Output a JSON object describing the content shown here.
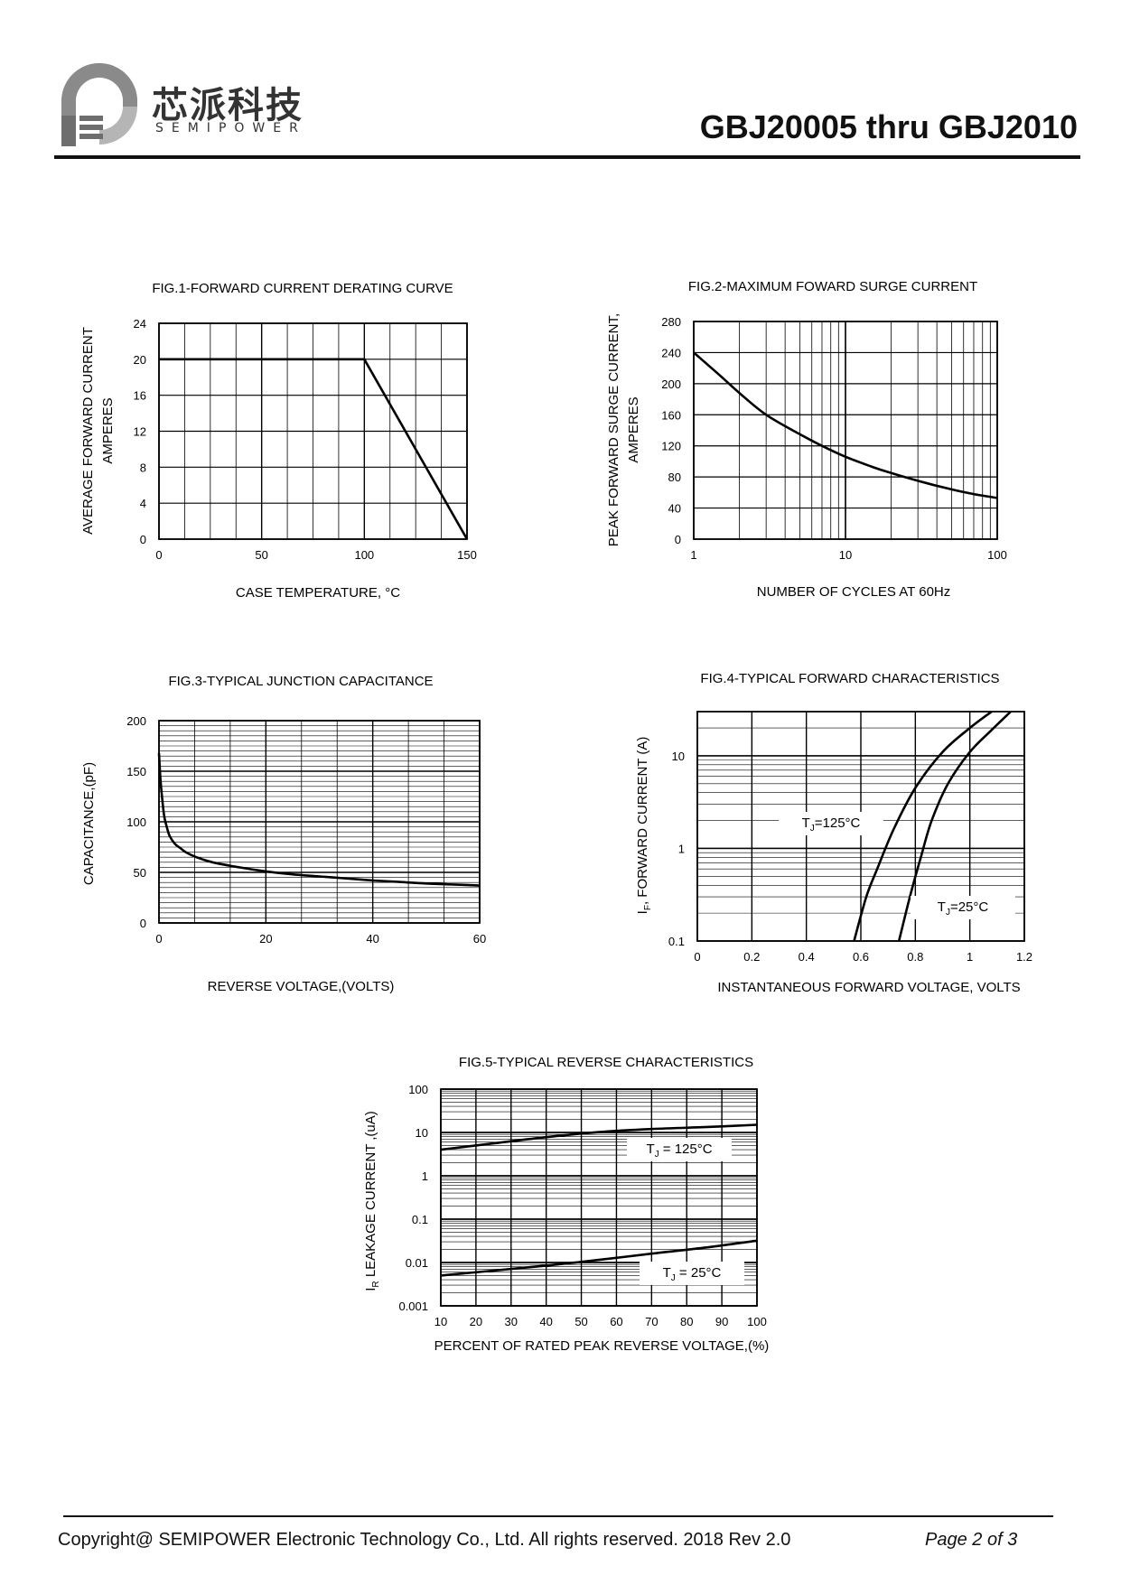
{
  "header": {
    "brand_cn": "芯派科技",
    "brand_en": "SEMIPOWER",
    "part_title": "GBJ20005 thru GBJ2010",
    "logo_icon": "semipower-logo-icon"
  },
  "footer": {
    "copyright": "Copyright@ SEMIPOWER Electronic Technology Co., Ltd.  All rights reserved.  2018  Rev  2.0",
    "page_label": "Page  2  of  3"
  },
  "chart_data": [
    {
      "id": "fig1",
      "type": "line",
      "title": "FIG.1-FORWARD CURRENT DERATING CURVE",
      "xlabel": "CASE TEMPERATURE, °C",
      "ylabel": [
        "AVERAGE FORWARD CURRENT",
        "AMPERES"
      ],
      "xlim": [
        0,
        150
      ],
      "ylim": [
        0,
        24
      ],
      "xticks": [
        0,
        50,
        100,
        150
      ],
      "yticks": [
        0,
        4,
        8,
        12,
        16,
        20,
        24
      ],
      "xscale": "linear",
      "yscale": "linear",
      "grid": true,
      "series": [
        {
          "x": [
            0,
            100,
            150
          ],
          "y": [
            20,
            20,
            0
          ]
        }
      ]
    },
    {
      "id": "fig2",
      "type": "line",
      "title": "FIG.2-MAXIMUM FOWARD  SURGE CURRENT",
      "xlabel": "NUMBER OF CYCLES AT 60Hz",
      "ylabel": [
        "PEAK FORWARD SURGE CURRENT,",
        "AMPERES"
      ],
      "xlim": [
        1,
        100
      ],
      "ylim": [
        0,
        280
      ],
      "xticks": [
        1,
        10,
        100
      ],
      "yticks": [
        0,
        40,
        80,
        120,
        160,
        200,
        240,
        280
      ],
      "xscale": "log",
      "yscale": "linear",
      "grid": true,
      "series": [
        {
          "x": [
            1,
            1.5,
            2,
            3,
            5,
            7,
            10,
            15,
            20,
            30,
            50,
            70,
            100
          ],
          "y": [
            240,
            210,
            188,
            160,
            135,
            120,
            106,
            93,
            85,
            75,
            64,
            58,
            53
          ]
        }
      ]
    },
    {
      "id": "fig3",
      "type": "line",
      "title": "FIG.3-TYPICAL JUNCTION CAPACITANCE",
      "xlabel": "REVERSE VOLTAGE,(VOLTS)",
      "ylabel": [
        "CAPACITANCE,(pF)"
      ],
      "xlim": [
        0,
        60
      ],
      "ylim": [
        0,
        200
      ],
      "xticks": [
        0,
        20,
        40,
        60
      ],
      "yticks": [
        0,
        50,
        100,
        150,
        200
      ],
      "xscale": "linear",
      "yscale": "linear",
      "grid": true,
      "series": [
        {
          "x": [
            0,
            0.3,
            0.7,
            1,
            1.5,
            2,
            3,
            4,
            5,
            7,
            10,
            15,
            20,
            25,
            30,
            35,
            40,
            45,
            50,
            55,
            60
          ],
          "y": [
            168,
            140,
            118,
            105,
            94,
            86,
            78,
            74,
            70,
            65,
            60,
            55,
            51,
            48,
            46,
            44,
            42,
            40.5,
            39,
            38,
            37
          ]
        }
      ]
    },
    {
      "id": "fig4",
      "type": "line",
      "title": "FIG.4-TYPICAL FORWARD CHARACTERISTICS",
      "xlabel": "INSTANTANEOUS FORWARD VOLTAGE, VOLTS",
      "ylabel": [
        "FORWARD CURRENT (A)"
      ],
      "ylabel_prefix": "I",
      "ylabel_sub": "F",
      "xlim": [
        0,
        1.2
      ],
      "ylim": [
        0.1,
        30
      ],
      "xticks": [
        0,
        0.2,
        0.4,
        0.6,
        0.8,
        1,
        1.2
      ],
      "xtick_labels": [
        "0",
        "0.2",
        "0.4",
        "0.6",
        "0.8",
        "1",
        "1.2"
      ],
      "yticks": [
        0.1,
        1,
        10
      ],
      "ytick_labels": [
        "0.1",
        "1",
        "10"
      ],
      "xscale": "linear",
      "yscale": "log",
      "grid": true,
      "series": [
        {
          "label_main": "T",
          "label_sub": "J",
          "label_rest": "=125°C",
          "x": [
            0.575,
            0.62,
            0.66,
            0.72,
            0.8,
            0.9,
            1.0,
            1.08
          ],
          "y": [
            0.1,
            0.3,
            0.6,
            1.6,
            4.5,
            11,
            20,
            30
          ]
        },
        {
          "label_main": "T",
          "label_sub": "J",
          "label_rest": "=25°C",
          "x": [
            0.74,
            0.78,
            0.82,
            0.86,
            0.92,
            1.0,
            1.08,
            1.15
          ],
          "y": [
            0.1,
            0.3,
            0.8,
            2,
            5,
            11,
            19,
            30
          ]
        }
      ]
    },
    {
      "id": "fig5",
      "type": "line",
      "title": "FIG.5-TYPICAL REVERSE CHARACTERISTICS",
      "xlabel": "PERCENT OF RATED PEAK REVERSE VOLTAGE,(%)",
      "ylabel": [
        "LEAKAGE  CURRENT ,(uA)"
      ],
      "ylabel_prefix": "I",
      "ylabel_sub": "R",
      "xlim": [
        10,
        100
      ],
      "ylim": [
        0.001,
        100
      ],
      "xticks": [
        10,
        20,
        30,
        40,
        50,
        60,
        70,
        80,
        90,
        100
      ],
      "yticks": [
        0.001,
        0.01,
        0.1,
        1,
        10,
        100
      ],
      "ytick_labels": [
        "0.001",
        "0.01",
        "0.1",
        "1",
        "10",
        "100"
      ],
      "xscale": "linear",
      "yscale": "log",
      "grid": true,
      "series": [
        {
          "label_main": "T",
          "label_sub": "J",
          "label_rest": " = 125°C",
          "x": [
            10,
            25,
            40,
            55,
            70,
            85,
            100
          ],
          "y": [
            4,
            5.6,
            7.8,
            10.2,
            12,
            13.3,
            15
          ]
        },
        {
          "label_main": "T",
          "label_sub": "J",
          "label_rest": " = 25°C",
          "x": [
            10,
            25,
            40,
            55,
            70,
            85,
            100
          ],
          "y": [
            0.005,
            0.0065,
            0.0085,
            0.0115,
            0.016,
            0.022,
            0.032
          ]
        }
      ]
    }
  ]
}
